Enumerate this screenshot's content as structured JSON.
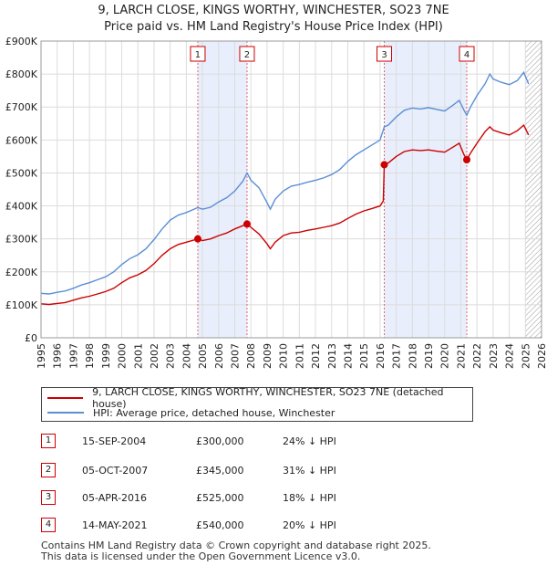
{
  "header": {
    "title_line1": "9, LARCH CLOSE, KINGS WORTHY, WINCHESTER, SO23 7NE",
    "title_line2": "Price paid vs. HM Land Registry's House Price Index (HPI)"
  },
  "chart_data": {
    "type": "line",
    "title": "9, LARCH CLOSE, KINGS WORTHY, WINCHESTER, SO23 7NE",
    "subtitle": "Price paid vs. HM Land Registry's House Price Index (HPI)",
    "xlim": [
      1995,
      2026
    ],
    "ylim": [
      0,
      900000
    ],
    "x_ticks": [
      1995,
      1996,
      1997,
      1998,
      1999,
      2000,
      2001,
      2002,
      2003,
      2004,
      2005,
      2006,
      2007,
      2008,
      2009,
      2010,
      2011,
      2012,
      2013,
      2014,
      2015,
      2016,
      2017,
      2018,
      2019,
      2020,
      2021,
      2022,
      2023,
      2024,
      2025,
      2026
    ],
    "y_ticks": [
      {
        "value": 0,
        "label": "£0"
      },
      {
        "value": 100000,
        "label": "£100K"
      },
      {
        "value": 200000,
        "label": "£200K"
      },
      {
        "value": 300000,
        "label": "£300K"
      },
      {
        "value": 400000,
        "label": "£400K"
      },
      {
        "value": 500000,
        "label": "£500K"
      },
      {
        "value": 600000,
        "label": "£600K"
      },
      {
        "value": 700000,
        "label": "£700K"
      },
      {
        "value": 800000,
        "label": "£800K"
      },
      {
        "value": 900000,
        "label": "£900K"
      }
    ],
    "grid": true,
    "highlight_spans": [
      [
        2004.71,
        2007.76
      ],
      [
        2016.26,
        2021.37
      ]
    ],
    "future_hatch_from": 2025.0,
    "series": [
      {
        "name": "9, LARCH CLOSE, KINGS WORTHY, WINCHESTER, SO23 7NE (detached house)",
        "color": "#cc0000",
        "points": [
          [
            1995.0,
            103000
          ],
          [
            1995.5,
            101000
          ],
          [
            1996.0,
            104000
          ],
          [
            1996.5,
            107000
          ],
          [
            1997.0,
            114000
          ],
          [
            1997.5,
            121000
          ],
          [
            1998.0,
            126000
          ],
          [
            1998.5,
            133000
          ],
          [
            1999.0,
            140000
          ],
          [
            1999.5,
            150000
          ],
          [
            2000.0,
            167000
          ],
          [
            2000.5,
            182000
          ],
          [
            2001.0,
            191000
          ],
          [
            2001.5,
            204000
          ],
          [
            2002.0,
            225000
          ],
          [
            2002.5,
            250000
          ],
          [
            2003.0,
            270000
          ],
          [
            2003.5,
            283000
          ],
          [
            2004.0,
            290000
          ],
          [
            2004.71,
            300000
          ],
          [
            2005.0,
            295000
          ],
          [
            2005.5,
            300000
          ],
          [
            2006.0,
            310000
          ],
          [
            2006.5,
            318000
          ],
          [
            2007.0,
            330000
          ],
          [
            2007.5,
            340000
          ],
          [
            2007.76,
            345000
          ],
          [
            2008.0,
            335000
          ],
          [
            2008.5,
            315000
          ],
          [
            2009.0,
            285000
          ],
          [
            2009.2,
            270000
          ],
          [
            2009.5,
            290000
          ],
          [
            2010.0,
            310000
          ],
          [
            2010.5,
            318000
          ],
          [
            2011.0,
            320000
          ],
          [
            2011.5,
            326000
          ],
          [
            2012.0,
            330000
          ],
          [
            2012.5,
            335000
          ],
          [
            2013.0,
            340000
          ],
          [
            2013.5,
            348000
          ],
          [
            2014.0,
            362000
          ],
          [
            2014.5,
            375000
          ],
          [
            2015.0,
            385000
          ],
          [
            2015.5,
            392000
          ],
          [
            2016.0,
            400000
          ],
          [
            2016.2,
            415000
          ],
          [
            2016.26,
            525000
          ],
          [
            2016.5,
            530000
          ],
          [
            2017.0,
            550000
          ],
          [
            2017.5,
            565000
          ],
          [
            2018.0,
            570000
          ],
          [
            2018.5,
            568000
          ],
          [
            2019.0,
            570000
          ],
          [
            2019.5,
            566000
          ],
          [
            2020.0,
            563000
          ],
          [
            2020.5,
            578000
          ],
          [
            2020.9,
            590000
          ],
          [
            2021.2,
            555000
          ],
          [
            2021.37,
            540000
          ],
          [
            2021.6,
            560000
          ],
          [
            2022.0,
            590000
          ],
          [
            2022.5,
            625000
          ],
          [
            2022.8,
            640000
          ],
          [
            2023.0,
            630000
          ],
          [
            2023.5,
            622000
          ],
          [
            2024.0,
            615000
          ],
          [
            2024.5,
            628000
          ],
          [
            2024.9,
            645000
          ],
          [
            2025.2,
            615000
          ]
        ]
      },
      {
        "name": "HPI: Average price, detached house, Winchester",
        "color": "#5b8fd6",
        "points": [
          [
            1995.0,
            135000
          ],
          [
            1995.5,
            133000
          ],
          [
            1996.0,
            138000
          ],
          [
            1996.5,
            142000
          ],
          [
            1997.0,
            150000
          ],
          [
            1997.5,
            160000
          ],
          [
            1998.0,
            167000
          ],
          [
            1998.5,
            176000
          ],
          [
            1999.0,
            185000
          ],
          [
            1999.5,
            200000
          ],
          [
            2000.0,
            222000
          ],
          [
            2000.5,
            240000
          ],
          [
            2001.0,
            252000
          ],
          [
            2001.5,
            270000
          ],
          [
            2002.0,
            298000
          ],
          [
            2002.5,
            330000
          ],
          [
            2003.0,
            357000
          ],
          [
            2003.5,
            372000
          ],
          [
            2004.0,
            380000
          ],
          [
            2004.71,
            395000
          ],
          [
            2005.0,
            390000
          ],
          [
            2005.5,
            396000
          ],
          [
            2006.0,
            412000
          ],
          [
            2006.5,
            425000
          ],
          [
            2007.0,
            445000
          ],
          [
            2007.5,
            475000
          ],
          [
            2007.76,
            500000
          ],
          [
            2008.0,
            478000
          ],
          [
            2008.5,
            455000
          ],
          [
            2009.0,
            410000
          ],
          [
            2009.2,
            390000
          ],
          [
            2009.5,
            420000
          ],
          [
            2010.0,
            445000
          ],
          [
            2010.5,
            460000
          ],
          [
            2011.0,
            465000
          ],
          [
            2011.5,
            472000
          ],
          [
            2012.0,
            478000
          ],
          [
            2012.5,
            485000
          ],
          [
            2013.0,
            495000
          ],
          [
            2013.5,
            510000
          ],
          [
            2014.0,
            535000
          ],
          [
            2014.5,
            555000
          ],
          [
            2015.0,
            570000
          ],
          [
            2015.5,
            585000
          ],
          [
            2016.0,
            600000
          ],
          [
            2016.26,
            640000
          ],
          [
            2016.5,
            645000
          ],
          [
            2017.0,
            670000
          ],
          [
            2017.5,
            690000
          ],
          [
            2018.0,
            697000
          ],
          [
            2018.5,
            694000
          ],
          [
            2019.0,
            698000
          ],
          [
            2019.5,
            693000
          ],
          [
            2020.0,
            688000
          ],
          [
            2020.5,
            705000
          ],
          [
            2020.9,
            720000
          ],
          [
            2021.2,
            690000
          ],
          [
            2021.37,
            675000
          ],
          [
            2021.6,
            700000
          ],
          [
            2022.0,
            735000
          ],
          [
            2022.5,
            770000
          ],
          [
            2022.8,
            800000
          ],
          [
            2023.0,
            785000
          ],
          [
            2023.5,
            775000
          ],
          [
            2024.0,
            768000
          ],
          [
            2024.5,
            780000
          ],
          [
            2024.9,
            805000
          ],
          [
            2025.2,
            770000
          ]
        ]
      }
    ],
    "sales": [
      {
        "label": "1",
        "x": 2004.71,
        "y": 300000
      },
      {
        "label": "2",
        "x": 2007.76,
        "y": 345000
      },
      {
        "label": "3",
        "x": 2016.26,
        "y": 525000
      },
      {
        "label": "4",
        "x": 2021.37,
        "y": 540000
      }
    ]
  },
  "legend": {
    "items": [
      {
        "label": "9, LARCH CLOSE, KINGS WORTHY, WINCHESTER, SO23 7NE (detached house)",
        "color": "#cc0000"
      },
      {
        "label": "HPI: Average price, detached house, Winchester",
        "color": "#5b8fd6"
      }
    ]
  },
  "sales_table": [
    {
      "num": "1",
      "date": "15-SEP-2004",
      "price": "£300,000",
      "hpi": "24% ↓ HPI"
    },
    {
      "num": "2",
      "date": "05-OCT-2007",
      "price": "£345,000",
      "hpi": "31% ↓ HPI"
    },
    {
      "num": "3",
      "date": "05-APR-2016",
      "price": "£525,000",
      "hpi": "18% ↓ HPI"
    },
    {
      "num": "4",
      "date": "14-MAY-2021",
      "price": "£540,000",
      "hpi": "20% ↓ HPI"
    }
  ],
  "footer": {
    "line1": "Contains HM Land Registry data © Crown copyright and database right 2025.",
    "line2": "This data is licensed under the Open Government Licence v3.0."
  }
}
